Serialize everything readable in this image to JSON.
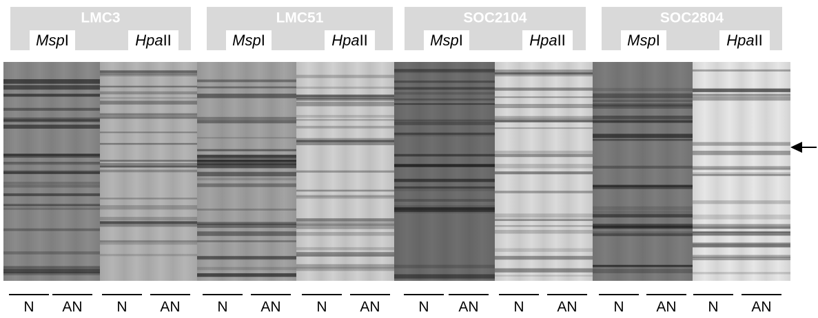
{
  "groups": [
    {
      "name": "LMC3",
      "enzymes": [
        {
          "italic": "Msp",
          "suffix": "I"
        },
        {
          "italic": "Hpa",
          "suffix": "II"
        }
      ]
    },
    {
      "name": "LMC51",
      "enzymes": [
        {
          "italic": "Msp",
          "suffix": "I"
        },
        {
          "italic": "Hpa",
          "suffix": "II"
        }
      ]
    },
    {
      "name": "SOC2104",
      "enzymes": [
        {
          "italic": "Msp",
          "suffix": "I"
        },
        {
          "italic": "Hpa",
          "suffix": "II"
        }
      ]
    },
    {
      "name": "SOC2804",
      "enzymes": [
        {
          "italic": "Msp",
          "suffix": "I"
        },
        {
          "italic": "Hpa",
          "suffix": "II"
        }
      ]
    }
  ],
  "lane_labels": [
    "N",
    "AN",
    "N",
    "AN",
    "N",
    "AN",
    "N",
    "AN",
    "N",
    "AN",
    "N",
    "AN",
    "N",
    "AN",
    "N",
    "AN"
  ]
}
